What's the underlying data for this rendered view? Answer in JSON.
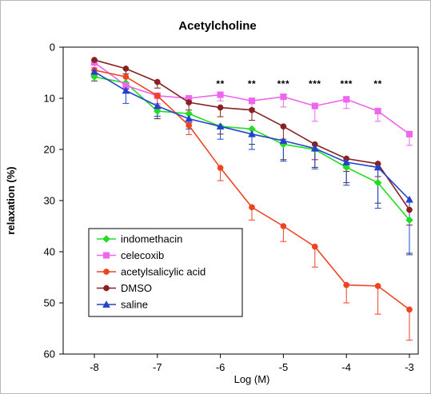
{
  "chart_data": {
    "type": "line",
    "title": "Acetylcholine",
    "xlabel": "Log (M)",
    "ylabel": "relaxation (%)",
    "xlim": [
      -8,
      -3
    ],
    "ylim": [
      0,
      60
    ],
    "y_inverted": true,
    "x_ticks": [
      -8,
      -7,
      -6,
      -5,
      -4,
      -3
    ],
    "x_tick_labels": [
      "-8",
      "-7",
      "-6",
      "-5",
      "-4",
      "-3"
    ],
    "y_ticks": [
      0,
      10,
      20,
      30,
      40,
      50,
      60
    ],
    "y_tick_labels": [
      "0",
      "10",
      "20",
      "30",
      "40",
      "50",
      "60"
    ],
    "grid": false,
    "legend_position": "bottom-left",
    "x": [
      -8,
      -7.5,
      -7,
      -6.5,
      -6,
      -5.5,
      -5,
      -4.5,
      -4,
      -3.5,
      -3
    ],
    "series": [
      {
        "name": "indomethacin",
        "color": "#22dd22",
        "marker": "diamond",
        "values": [
          5.8,
          7.0,
          12.5,
          13.0,
          15.5,
          16.0,
          19.0,
          20.0,
          23.5,
          26.5,
          33.8
        ],
        "errors": [
          0.8,
          1.2,
          1.5,
          1.8,
          1.5,
          3.0,
          3.0,
          3.5,
          3.0,
          4.0,
          6.5
        ]
      },
      {
        "name": "celecoxib",
        "color": "#ee66ee",
        "marker": "square",
        "values": [
          3.0,
          7.5,
          9.5,
          10.0,
          9.3,
          10.5,
          9.7,
          11.5,
          10.2,
          12.5,
          17.0
        ],
        "errors": [
          1.0,
          1.5,
          1.5,
          1.0,
          1.2,
          1.5,
          2.0,
          3.0,
          1.8,
          2.0,
          2.2
        ]
      },
      {
        "name": "acetylsalicylic acid",
        "color": "#ee4422",
        "marker": "circle",
        "values": [
          4.5,
          5.8,
          9.5,
          15.3,
          23.6,
          31.3,
          35.0,
          39.0,
          46.5,
          46.7,
          51.3
        ],
        "errors": [
          1.0,
          1.5,
          1.8,
          1.8,
          2.5,
          2.5,
          3.0,
          4.0,
          3.5,
          5.5,
          6.0
        ]
      },
      {
        "name": "DMSO",
        "color": "#882222",
        "marker": "circle",
        "values": [
          2.5,
          4.2,
          6.8,
          10.8,
          11.8,
          12.3,
          15.5,
          19.0,
          21.8,
          22.8,
          31.8
        ],
        "errors": [
          0.8,
          1.0,
          1.2,
          1.5,
          1.8,
          2.0,
          2.5,
          3.0,
          2.5,
          2.5,
          3.0
        ]
      },
      {
        "name": "saline",
        "color": "#2244cc",
        "marker": "triangle",
        "values": [
          4.8,
          8.5,
          11.5,
          14.0,
          15.5,
          17.0,
          18.3,
          19.8,
          22.5,
          23.5,
          29.8
        ],
        "errors": [
          1.0,
          2.5,
          2.0,
          2.0,
          2.5,
          3.0,
          4.0,
          4.0,
          4.5,
          8.0,
          10.8
        ]
      }
    ],
    "annotations": [
      {
        "x": -6,
        "text": "**"
      },
      {
        "x": -5.5,
        "text": "**"
      },
      {
        "x": -5,
        "text": "***"
      },
      {
        "x": -4.5,
        "text": "***"
      },
      {
        "x": -4,
        "text": "***"
      },
      {
        "x": -3.5,
        "text": "**"
      }
    ]
  }
}
